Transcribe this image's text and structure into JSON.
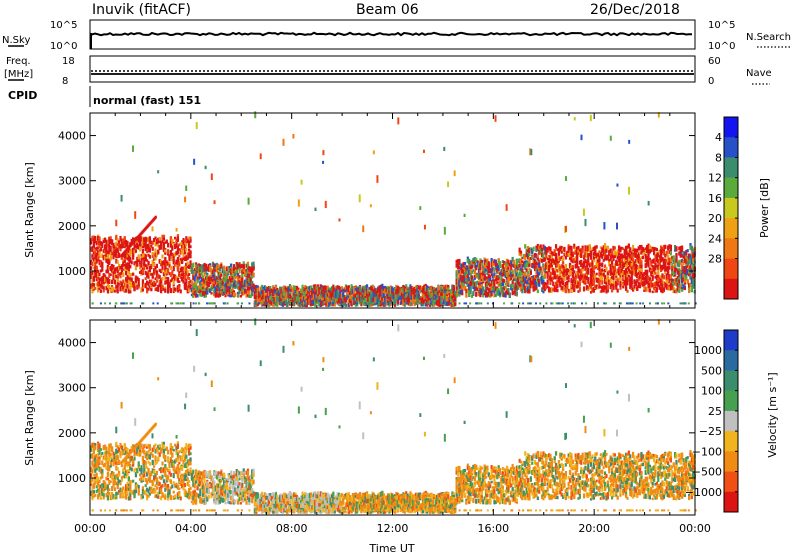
{
  "header": {
    "station": "Inuvik (fitACF)",
    "beam": "Beam 06",
    "date": "26/Dec/2018"
  },
  "status_panels": {
    "nsky_label": "N.Sky",
    "nsearch_label": "N.Search",
    "nsky_ticks": [
      "10^5",
      "10^0"
    ],
    "nsearch_ticks": [
      "10^5",
      "10^0"
    ],
    "freq_label_line1": "Freq.",
    "freq_label_line2": "[MHz]",
    "freq_ticks": [
      "18",
      "8"
    ],
    "nave_label": "Nave",
    "nave_ticks": [
      "60",
      "0"
    ],
    "cpid_label": "CPID",
    "cpid_text": "normal (fast) 151"
  },
  "chart_data": [
    {
      "type": "heatmap",
      "name": "power",
      "ylabel": "Slant Range [km]",
      "y_ticks": [
        1000,
        2000,
        3000,
        4000
      ],
      "ylim": [
        180,
        4500
      ],
      "x_ticks": [
        "00:00",
        "04:00",
        "08:00",
        "12:00",
        "16:00",
        "20:00",
        "00:00"
      ],
      "xlim_hours": [
        0,
        24
      ],
      "colorbar": {
        "label": "Power [dB]",
        "ticks": [
          "4",
          "8",
          "12",
          "16",
          "20",
          "24",
          "28"
        ],
        "colors": [
          "#1414f0",
          "#2850c8",
          "#3c8c6e",
          "#5aaa3c",
          "#c8c81e",
          "#f0a014",
          "#f07814",
          "#f04614",
          "#dc1414"
        ]
      }
    },
    {
      "type": "heatmap",
      "name": "velocity",
      "ylabel": "Slant Range [km]",
      "y_ticks": [
        1000,
        2000,
        3000,
        4000
      ],
      "ylim": [
        180,
        4500
      ],
      "x_ticks": [
        "00:00",
        "04:00",
        "08:00",
        "12:00",
        "16:00",
        "20:00",
        "00:00"
      ],
      "xlabel": "Time UT",
      "xlim_hours": [
        0,
        24
      ],
      "colorbar": {
        "label": "Velocity [m s⁻¹]",
        "ticks": [
          "1000",
          "500",
          "100",
          "25",
          "−25",
          "−100",
          "−500",
          "−1000"
        ],
        "colors": [
          "#1e3cc8",
          "#2a6aa0",
          "#3c8c6e",
          "#46a050",
          "#c0c0c0",
          "#f0b41e",
          "#f08c14",
          "#f05014",
          "#dc1414"
        ]
      }
    }
  ]
}
